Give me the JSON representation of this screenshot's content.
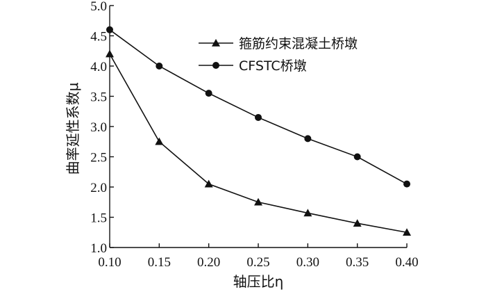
{
  "chart_data": {
    "type": "line",
    "xlabel": "轴压比η",
    "ylabel": "曲率延性系数μ",
    "x": [
      0.1,
      0.15,
      0.2,
      0.25,
      0.3,
      0.35,
      0.4
    ],
    "xlim": [
      0.1,
      0.4
    ],
    "ylim": [
      1.0,
      5.0
    ],
    "x_ticks": [
      "0.10",
      "0.15",
      "0.20",
      "0.25",
      "0.30",
      "0.35",
      "0.40"
    ],
    "y_ticks": [
      "1.0",
      "1.5",
      "2.0",
      "2.5",
      "3.0",
      "3.5",
      "4.0",
      "4.5",
      "5.0"
    ],
    "grid": false,
    "legend_position": "top-right",
    "series": [
      {
        "name": "箍筋约束混凝土桥墩",
        "marker": "triangle",
        "values": [
          4.2,
          2.75,
          2.05,
          1.75,
          1.57,
          1.4,
          1.25
        ]
      },
      {
        "name": "CFSTC桥墩",
        "marker": "circle",
        "values": [
          4.6,
          4.0,
          3.55,
          3.15,
          2.8,
          2.5,
          2.05
        ]
      }
    ],
    "colors": {
      "line": "#111111",
      "background": "#ffffff"
    }
  }
}
